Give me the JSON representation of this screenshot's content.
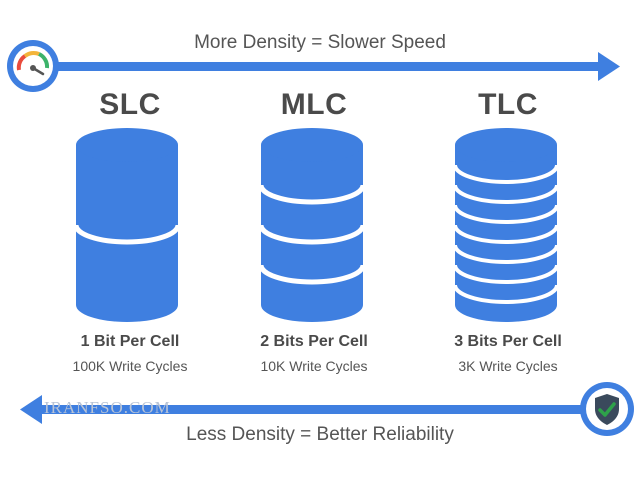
{
  "top_caption": "More Density = Slower Speed",
  "bottom_caption": "Less Density = Better Reliability",
  "watermark": "IRANFSO.COM",
  "colors": {
    "accent_blue": "#3f7fe0",
    "text_dark": "#4a4a4a",
    "text_muted": "#555555",
    "check_green": "#2ea24a"
  },
  "icons": {
    "top_left": "speedometer-icon",
    "bottom_right": "shield-check-icon"
  },
  "cells": [
    {
      "type": "SLC",
      "bits": "1 Bit Per Cell",
      "cycles": "100K Write Cycles",
      "layers": 2
    },
    {
      "type": "MLC",
      "bits": "2 Bits Per Cell",
      "cycles": "10K Write Cycles",
      "layers": 4
    },
    {
      "type": "TLC",
      "bits": "3 Bits Per Cell",
      "cycles": "3K Write Cycles",
      "layers": 8
    }
  ]
}
